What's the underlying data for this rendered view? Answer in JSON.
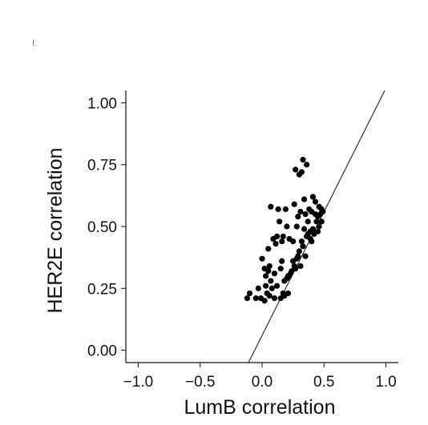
{
  "chart_data": {
    "type": "scatter",
    "xlabel": "LumB correlation",
    "ylabel": "HER2E correlation",
    "xlim": [
      -1.1,
      1.1
    ],
    "ylim": [
      -0.05,
      1.05
    ],
    "x_ticks": [
      -1.0,
      -0.5,
      0.0,
      0.5,
      1.0
    ],
    "x_tick_labels": [
      "−1.0",
      "−0.5",
      "0.0",
      "0.5",
      "1.0"
    ],
    "y_ticks": [
      0.0,
      0.25,
      0.5,
      0.75,
      1.0
    ],
    "y_tick_labels": [
      "0.00",
      "0.25",
      "0.50",
      "0.75",
      "1.00"
    ],
    "grid": false,
    "reference_line": {
      "slope": 1.0,
      "intercept": 0.06
    },
    "points": [
      [
        -0.12,
        0.21
      ],
      [
        -0.1,
        0.23
      ],
      [
        -0.05,
        0.21
      ],
      [
        -0.03,
        0.25
      ],
      [
        -0.01,
        0.21
      ],
      [
        0.0,
        0.37
      ],
      [
        0.02,
        0.2
      ],
      [
        0.02,
        0.33
      ],
      [
        0.03,
        0.26
      ],
      [
        0.03,
        0.3
      ],
      [
        0.04,
        0.23
      ],
      [
        0.05,
        0.32
      ],
      [
        0.05,
        0.41
      ],
      [
        0.06,
        0.22
      ],
      [
        0.06,
        0.34
      ],
      [
        0.07,
        0.58
      ],
      [
        0.07,
        0.28
      ],
      [
        0.08,
        0.25
      ],
      [
        0.09,
        0.45
      ],
      [
        0.1,
        0.31
      ],
      [
        0.1,
        0.21
      ],
      [
        0.11,
        0.43
      ],
      [
        0.12,
        0.46
      ],
      [
        0.12,
        0.26
      ],
      [
        0.13,
        0.57
      ],
      [
        0.14,
        0.52
      ],
      [
        0.15,
        0.21
      ],
      [
        0.15,
        0.33
      ],
      [
        0.16,
        0.44
      ],
      [
        0.16,
        0.36
      ],
      [
        0.17,
        0.23
      ],
      [
        0.17,
        0.46
      ],
      [
        0.18,
        0.22
      ],
      [
        0.18,
        0.28
      ],
      [
        0.19,
        0.57
      ],
      [
        0.2,
        0.29
      ],
      [
        0.2,
        0.5
      ],
      [
        0.21,
        0.23
      ],
      [
        0.21,
        0.3
      ],
      [
        0.22,
        0.3
      ],
      [
        0.22,
        0.45
      ],
      [
        0.23,
        0.31
      ],
      [
        0.24,
        0.32
      ],
      [
        0.25,
        0.44
      ],
      [
        0.25,
        0.36
      ],
      [
        0.26,
        0.34
      ],
      [
        0.26,
        0.59
      ],
      [
        0.27,
        0.33
      ],
      [
        0.27,
        0.73
      ],
      [
        0.28,
        0.37
      ],
      [
        0.28,
        0.5
      ],
      [
        0.29,
        0.38
      ],
      [
        0.29,
        0.54
      ],
      [
        0.3,
        0.71
      ],
      [
        0.3,
        0.4
      ],
      [
        0.31,
        0.34
      ],
      [
        0.31,
        0.56
      ],
      [
        0.32,
        0.72
      ],
      [
        0.32,
        0.44
      ],
      [
        0.33,
        0.42
      ],
      [
        0.33,
        0.77
      ],
      [
        0.34,
        0.49
      ],
      [
        0.34,
        0.61
      ],
      [
        0.35,
        0.38
      ],
      [
        0.35,
        0.55
      ],
      [
        0.36,
        0.46
      ],
      [
        0.36,
        0.75
      ],
      [
        0.37,
        0.47
      ],
      [
        0.37,
        0.52
      ],
      [
        0.38,
        0.57
      ],
      [
        0.39,
        0.45
      ],
      [
        0.39,
        0.48
      ],
      [
        0.4,
        0.44
      ],
      [
        0.4,
        0.56
      ],
      [
        0.41,
        0.49
      ],
      [
        0.41,
        0.62
      ],
      [
        0.42,
        0.47
      ],
      [
        0.43,
        0.6
      ],
      [
        0.43,
        0.55
      ],
      [
        0.44,
        0.52
      ],
      [
        0.45,
        0.48
      ],
      [
        0.45,
        0.54
      ],
      [
        0.46,
        0.5
      ],
      [
        0.46,
        0.58
      ],
      [
        0.47,
        0.55
      ],
      [
        0.48,
        0.52
      ],
      [
        0.48,
        0.57
      ],
      [
        0.49,
        0.56
      ]
    ]
  }
}
